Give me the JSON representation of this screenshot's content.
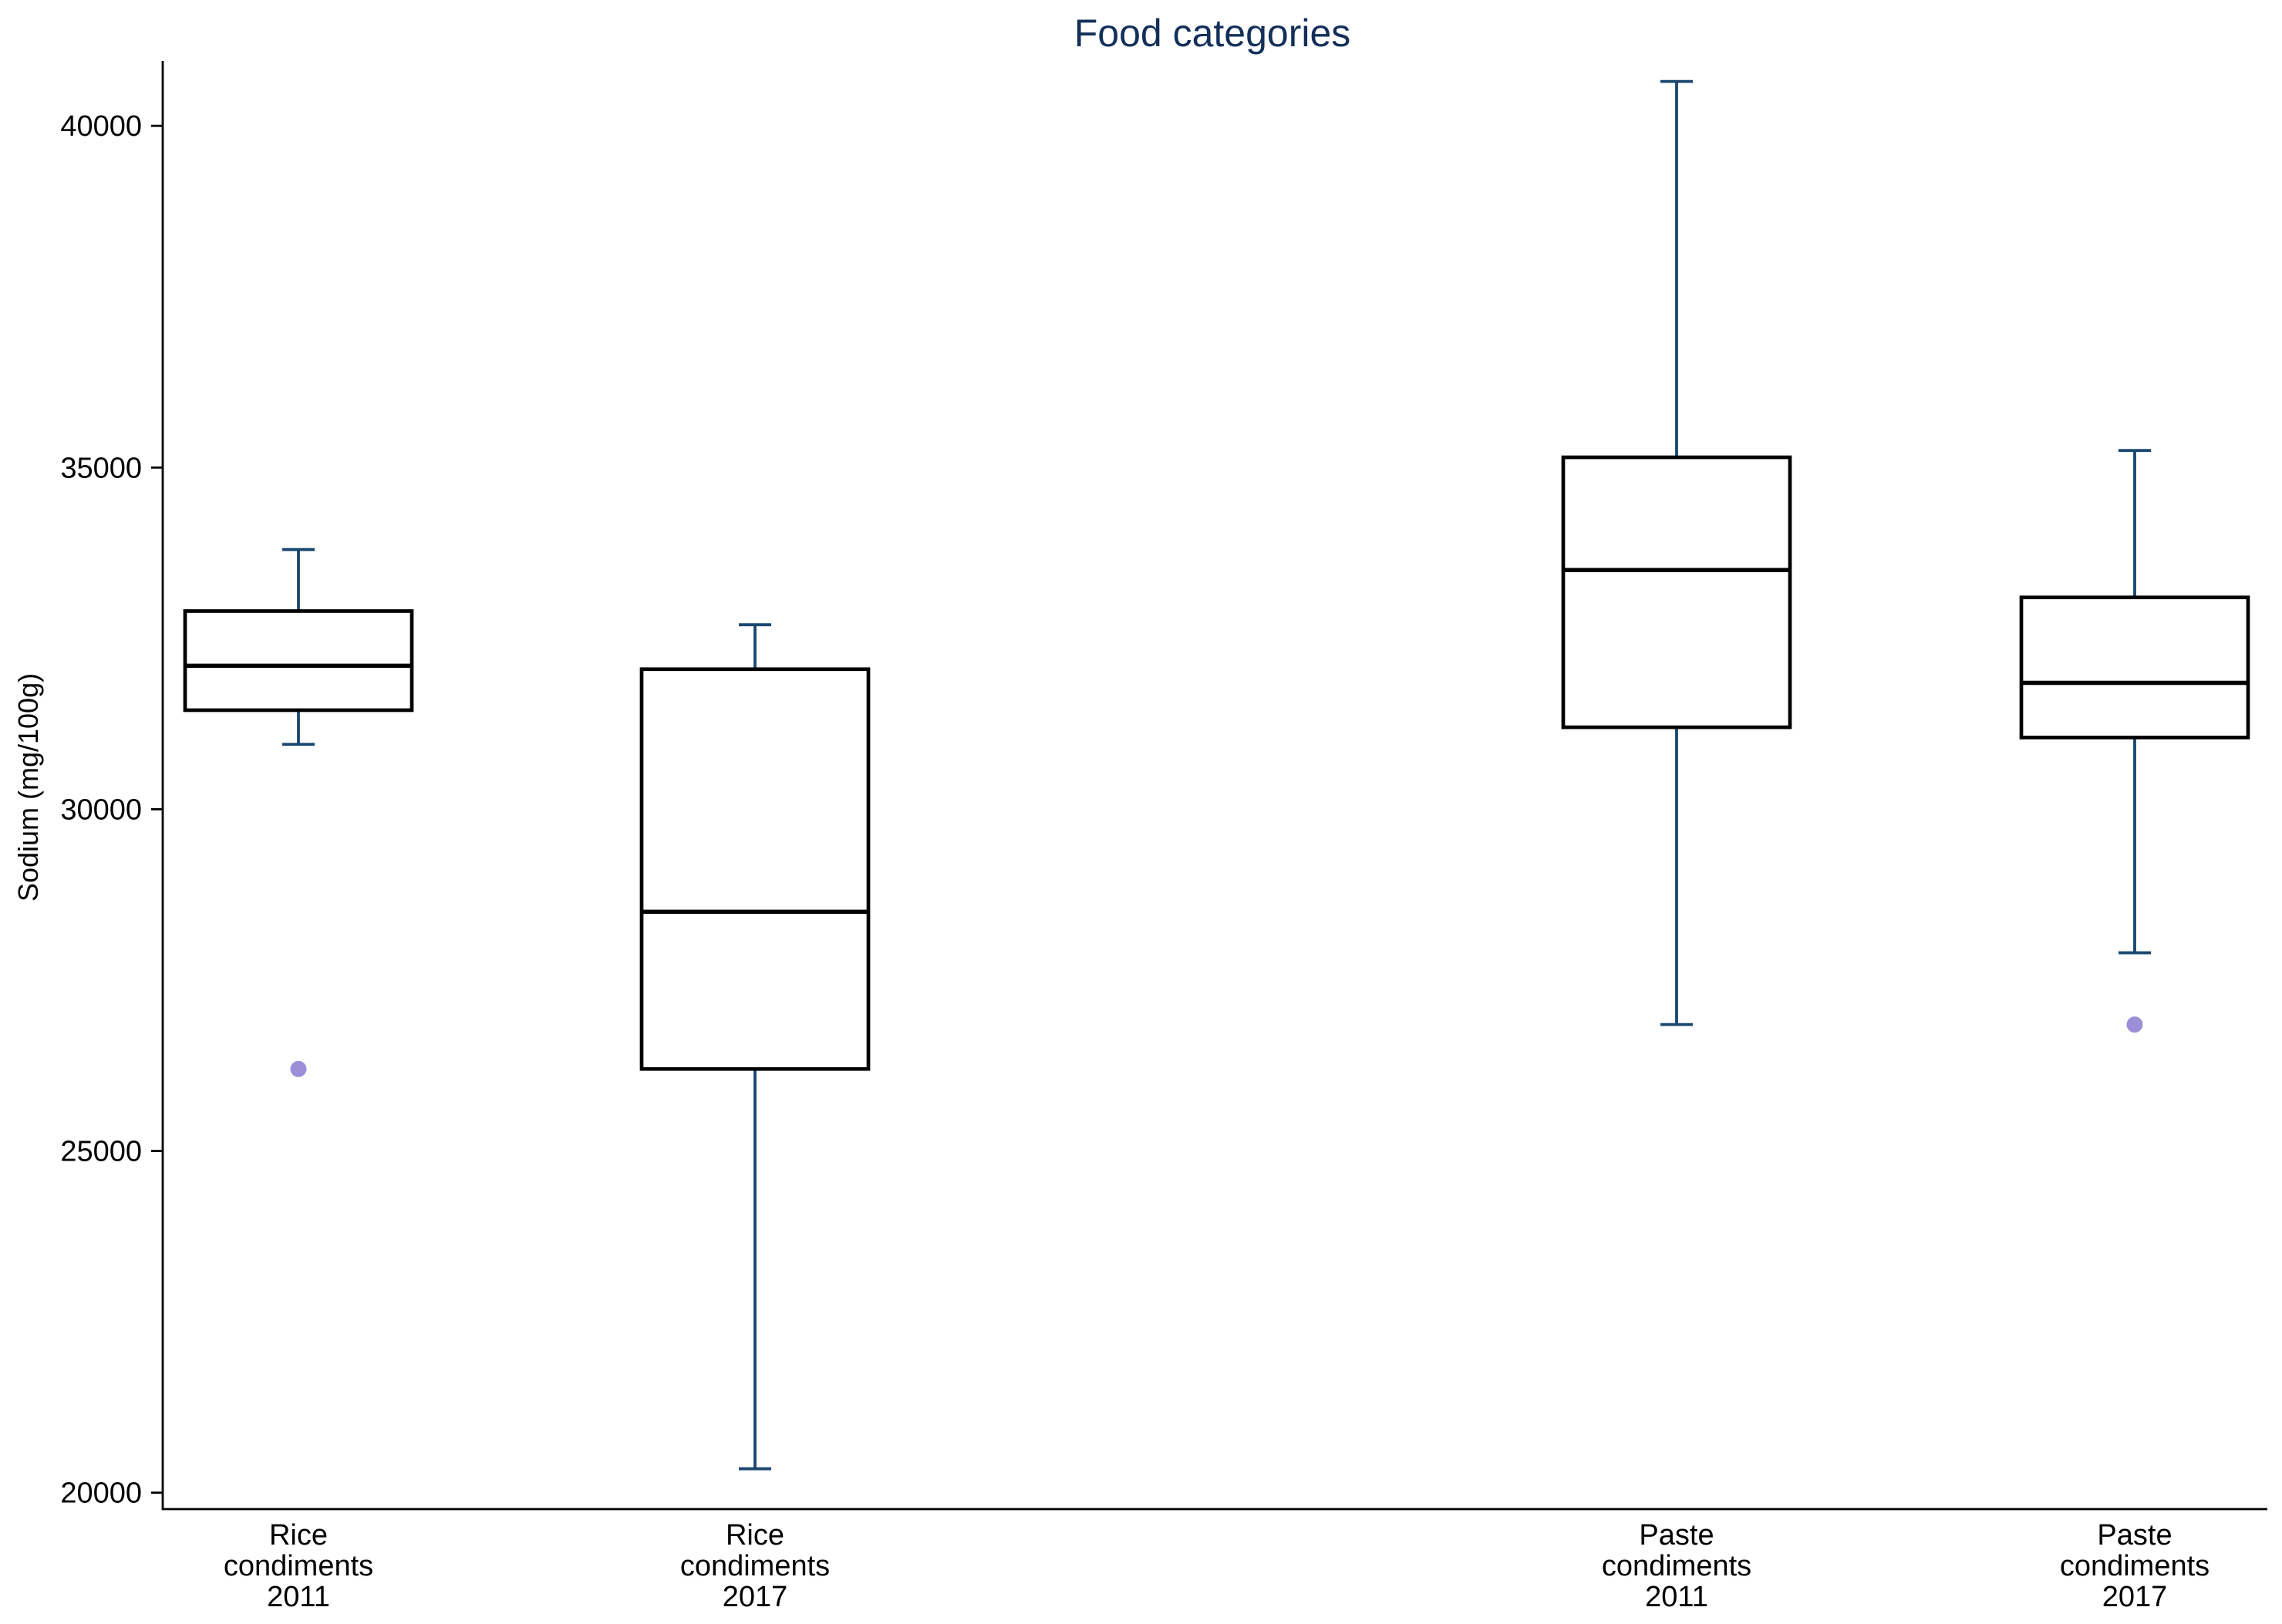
{
  "chart_data": {
    "type": "box",
    "title": "Food categories",
    "xlabel": "",
    "ylabel": "Sodium (mg/100g)",
    "ylim": [
      19760,
      40950
    ],
    "yticks": [
      20000,
      25000,
      30000,
      35000,
      40000
    ],
    "grid": false,
    "legend": "none",
    "categories": [
      {
        "label_lines": [
          "Rice",
          "condiments",
          "2011"
        ],
        "whisker_low": 30950,
        "q1": 31450,
        "median": 32100,
        "q3": 32900,
        "whisker_high": 33800,
        "outliers": [
          26200
        ]
      },
      {
        "label_lines": [
          "Rice",
          "condiments",
          "2017"
        ],
        "whisker_low": 20350,
        "q1": 26200,
        "median": 28500,
        "q3": 32050,
        "whisker_high": 32700,
        "outliers": []
      },
      {
        "label_lines": [
          "Paste",
          "condiments",
          "2011"
        ],
        "whisker_low": 26850,
        "q1": 31200,
        "median": 33500,
        "q3": 35150,
        "whisker_high": 40650,
        "outliers": []
      },
      {
        "label_lines": [
          "Paste",
          "condiments",
          "2017"
        ],
        "whisker_low": 27900,
        "q1": 31050,
        "median": 31850,
        "q3": 33100,
        "whisker_high": 35250,
        "outliers": [
          26850
        ]
      }
    ]
  },
  "colors": {
    "title": "#13305a",
    "box_outline": "#000000",
    "box_fill": "#ffffff",
    "median": "#000000",
    "whisker": "#1a476f",
    "outlier": "#9c8fd8",
    "axis": "#000000"
  }
}
